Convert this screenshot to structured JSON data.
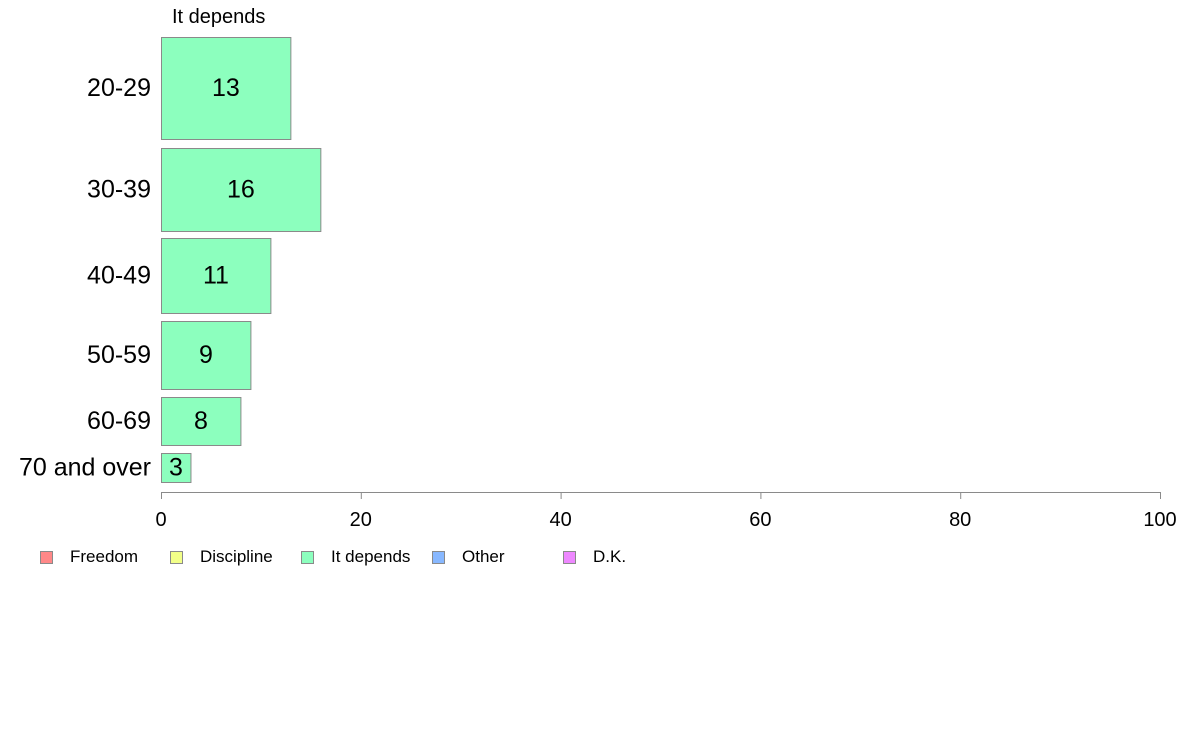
{
  "chart_data": {
    "type": "bar",
    "orientation": "horizontal",
    "panel_title": "It depends",
    "categories": [
      "20-29",
      "30-39",
      "40-49",
      "50-59",
      "60-69",
      "70 and over"
    ],
    "series": [
      {
        "name": "It depends",
        "color": "#8cffbe",
        "values": [
          13,
          16,
          11,
          9,
          8,
          3
        ],
        "labels": [
          "13",
          "16",
          "11",
          "9",
          "8",
          "3"
        ]
      }
    ],
    "xlim": [
      0,
      100
    ],
    "xticks": [
      0,
      20,
      40,
      60,
      80,
      100
    ],
    "xtick_labels": [
      "0",
      "20",
      "40",
      "60",
      "80",
      "100"
    ],
    "grid": false,
    "legend_position": "bottom-left",
    "legend": [
      {
        "label": "Freedom",
        "color": "#ff8888"
      },
      {
        "label": "Discipline",
        "color": "#f2ff88"
      },
      {
        "label": "It depends",
        "color": "#8cffbe"
      },
      {
        "label": "Other",
        "color": "#88b8ff"
      },
      {
        "label": "D.K.",
        "color": "#ee88ff"
      }
    ]
  }
}
